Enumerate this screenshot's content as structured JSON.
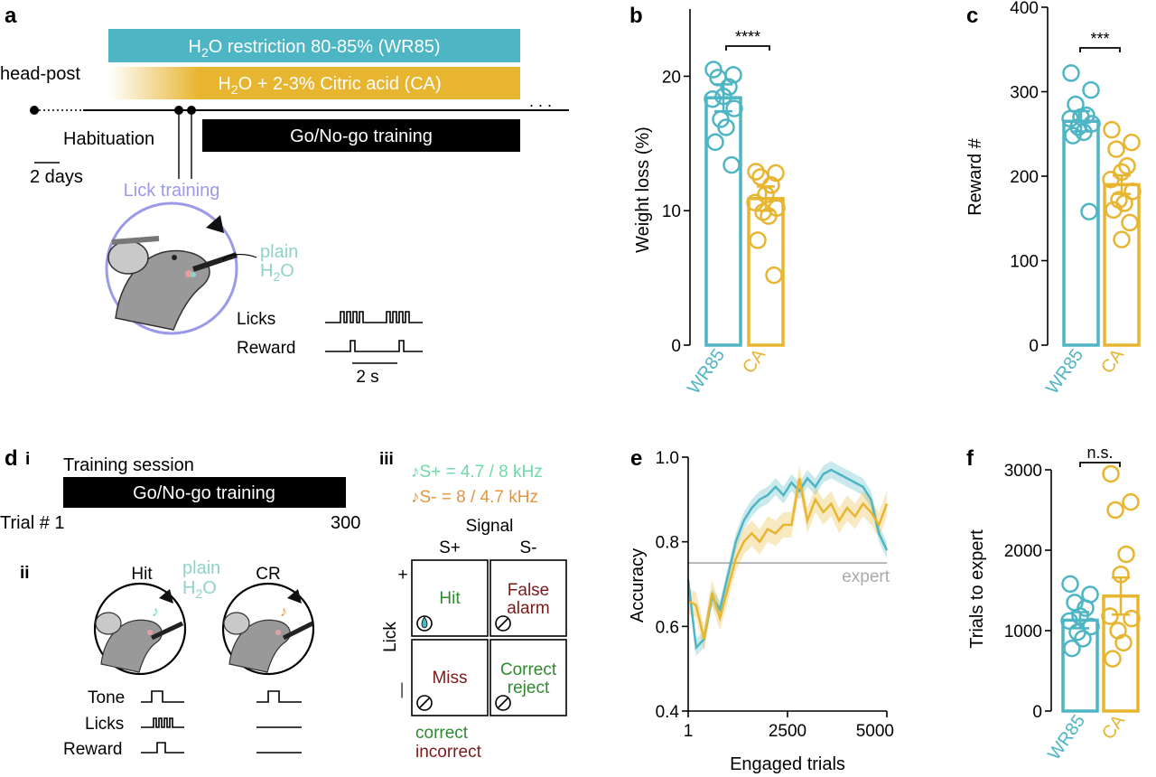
{
  "colors": {
    "wr85": "#4eb5c4",
    "ca": "#e8b530",
    "black": "#000000",
    "lick_training": "#9a9ae8",
    "plain_h2o": "#8fd3c8",
    "s_plus": "#6fd9a8",
    "s_minus": "#e39540",
    "correct": "#2f8a2f",
    "incorrect": "#7a1a1a",
    "expert_line": "#aaaaaa"
  },
  "panel_labels": {
    "a": "a",
    "b": "b",
    "c": "c",
    "d": "d",
    "e": "e",
    "f": "f",
    "di": "i",
    "dii": "ii",
    "diii": "iii"
  },
  "panel_a": {
    "wr85_bar": {
      "prefix": "H",
      "sub": "2",
      "suffix": "O restriction 80-85% (WR85)"
    },
    "ca_bar": {
      "prefix": "H",
      "sub": "2",
      "suffix": "O + 2-3% Citric acid (CA)"
    },
    "head_post": "head-post",
    "habituation": "Habituation",
    "scale_days": "2 days",
    "ellipsis": ". . .",
    "go_nogo": "Go/No-go training",
    "lick_training": "Lick training",
    "plain": "plain",
    "h2o": {
      "prefix": "H",
      "sub": "2",
      "suffix": "O"
    },
    "licks": "Licks",
    "reward": "Reward",
    "scale_s": "2 s"
  },
  "panel_d": {
    "training_session": "Training session",
    "go_nogo": "Go/No-go training",
    "trial_start": "Trial # 1",
    "trial_end": "300",
    "hit": "Hit",
    "cr": "CR",
    "plain": "plain",
    "h2o": {
      "prefix": "H",
      "sub": "2",
      "suffix": "O"
    },
    "tone": "Tone",
    "licks": "Licks",
    "reward": "Reward",
    "s_plus_def": "♪S+ = 4.7 / 8 kHz",
    "s_minus_def": "♪S- = 8 / 4.7 kHz",
    "signal": "Signal",
    "s_plus": "S+",
    "s_minus": "S-",
    "lick": "Lick",
    "plus": "+",
    "minus": "—",
    "cells": {
      "hit": "Hit",
      "false_alarm_1": "False",
      "false_alarm_2": "alarm",
      "miss": "Miss",
      "correct_reject_1": "Correct",
      "correct_reject_2": "reject"
    },
    "correct": "correct",
    "incorrect": "incorrect"
  },
  "chart_data": [
    {
      "panel": "b",
      "type": "bar",
      "title": "",
      "xlabel": "",
      "ylabel": "Weight loss (%)",
      "ylim": [
        0,
        25
      ],
      "yticks": [
        0,
        10,
        20
      ],
      "categories": [
        "WR85",
        "CA"
      ],
      "values": [
        18.4,
        10.9
      ],
      "sem": [
        1.0,
        0.9
      ],
      "points": [
        [
          20.5,
          20.1,
          19.9,
          19.2,
          18.5,
          18.3,
          17.6,
          16.8,
          16.2,
          15.1,
          13.4
        ],
        [
          12.9,
          12.8,
          12.5,
          11.9,
          11.2,
          10.6,
          10.2,
          9.9,
          9.6,
          7.8,
          5.2
        ]
      ],
      "significance": "****"
    },
    {
      "panel": "c",
      "type": "bar",
      "title": "",
      "xlabel": "",
      "ylabel": "Reward #",
      "ylim": [
        0,
        400
      ],
      "yticks": [
        0,
        100,
        200,
        300,
        400
      ],
      "categories": [
        "WR85",
        "CA"
      ],
      "values": [
        265,
        190
      ],
      "sem": [
        12,
        11
      ],
      "points": [
        [
          322,
          302,
          285,
          272,
          270,
          268,
          262,
          258,
          252,
          248,
          158
        ],
        [
          255,
          240,
          232,
          212,
          205,
          196,
          182,
          172,
          168,
          160,
          145,
          125
        ]
      ],
      "significance": "***"
    },
    {
      "panel": "e",
      "type": "line",
      "title": "",
      "xlabel": "Engaged trials",
      "ylabel": "Accuracy",
      "xlim": [
        1,
        5000
      ],
      "ylim": [
        0.4,
        1.0
      ],
      "xticks": [
        1,
        2500,
        5000
      ],
      "yticks": [
        0.4,
        0.6,
        0.8,
        1.0
      ],
      "reference": {
        "y": 0.75,
        "label": "expert"
      },
      "series": [
        {
          "band": 0.02,
          "x": [
            1,
            200,
            400,
            600,
            800,
            1000,
            1200,
            1400,
            1600,
            1800,
            2000,
            2200,
            2400,
            2600,
            2800,
            3000,
            3200,
            3400,
            3600,
            3800,
            4000,
            4200,
            4400,
            4600,
            4800,
            5000
          ],
          "y": [
            0.71,
            0.55,
            0.57,
            0.67,
            0.64,
            0.72,
            0.8,
            0.85,
            0.88,
            0.9,
            0.91,
            0.93,
            0.91,
            0.94,
            0.92,
            0.95,
            0.93,
            0.96,
            0.97,
            0.96,
            0.95,
            0.94,
            0.93,
            0.9,
            0.82,
            0.78
          ]
        },
        {
          "band": 0.03,
          "x": [
            1,
            200,
            400,
            600,
            800,
            1000,
            1200,
            1400,
            1600,
            1800,
            2000,
            2200,
            2400,
            2600,
            2800,
            3000,
            3200,
            3400,
            3600,
            3800,
            4000,
            4200,
            4400,
            4600,
            4800,
            5000
          ],
          "y": [
            0.66,
            0.65,
            0.57,
            0.68,
            0.62,
            0.69,
            0.76,
            0.8,
            0.82,
            0.8,
            0.83,
            0.82,
            0.84,
            0.84,
            0.95,
            0.85,
            0.9,
            0.87,
            0.89,
            0.85,
            0.88,
            0.86,
            0.89,
            0.87,
            0.84,
            0.89
          ]
        }
      ]
    },
    {
      "panel": "f",
      "type": "bar",
      "title": "",
      "xlabel": "",
      "ylabel": "Trials to expert",
      "ylim": [
        0,
        3000
      ],
      "yticks": [
        0,
        1000,
        2000,
        3000
      ],
      "categories": [
        "WR85",
        "CA"
      ],
      "values": [
        1130,
        1430
      ],
      "sem": [
        100,
        230
      ],
      "points": [
        [
          1580,
          1450,
          1350,
          1280,
          1180,
          1120,
          1050,
          980,
          900,
          780
        ],
        [
          2950,
          2600,
          2500,
          1950,
          1700,
          1180,
          1150,
          1000,
          850,
          650
        ]
      ],
      "significance": "n.s."
    }
  ]
}
